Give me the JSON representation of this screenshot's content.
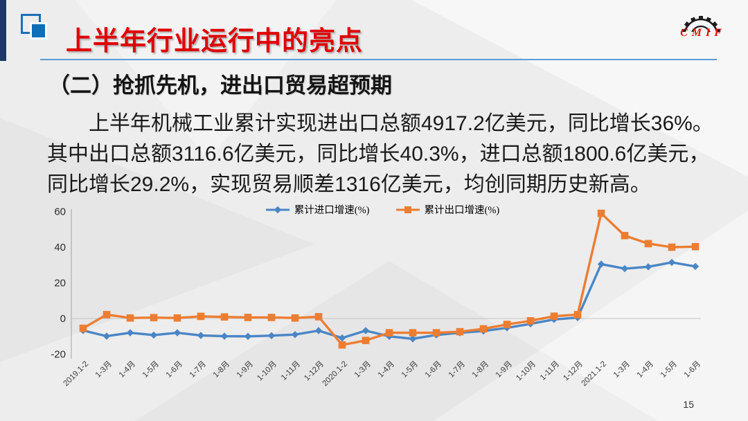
{
  "slide": {
    "title": "上半年行业运行中的亮点",
    "subtitle": "（二）抢抓先机，进出口贸易超预期",
    "body_lines": [
      "上半年机械工业累计实现进出口总额4917.2亿美元，同比增长36%。",
      "其中出口总额3116.6亿美元，同比增长40.3%，进口总额1800.6亿美元，",
      "同比增长29.2%，实现贸易顺差1316亿美元，均创同期历史新高。"
    ],
    "page_number": "15",
    "logo_text": "CMIF"
  },
  "colors": {
    "title_red": "#E00000",
    "underline_blue": "#5B9BD5",
    "icon_blue": "#0E6EB8",
    "bar_navy": "#1F3864",
    "import_blue": "#4A86C6",
    "export_orange": "#ED7D31",
    "gridline_gray": "#C3C3C3"
  },
  "chart_data": {
    "type": "line",
    "categories": [
      "2019.1-2",
      "1-3月",
      "1-4月",
      "1-5月",
      "1-6月",
      "1-7月",
      "1-8月",
      "1-9月",
      "1-10月",
      "1-11月",
      "1-12月",
      "2020.1-2",
      "1-3月",
      "1-4月",
      "1-5月",
      "1-6月",
      "1-7月",
      "1-8月",
      "1-9月",
      "1-10月",
      "1-11月",
      "1-12月",
      "2021.1-2",
      "1-3月",
      "1-4月",
      "1-5月",
      "1-6月"
    ],
    "series": [
      {
        "name": "累计进口增速(%)",
        "color": "#4A86C6",
        "marker": "diamond",
        "values": [
          -6.7,
          -9.9,
          -8.0,
          -9.3,
          -8.0,
          -9.5,
          -9.9,
          -10.0,
          -9.6,
          -9.0,
          -6.8,
          -10.9,
          -6.8,
          -10.0,
          -11.4,
          -9.2,
          -8.0,
          -7.0,
          -5.2,
          -3.0,
          -0.5,
          0.5,
          30.5,
          28.0,
          29.0,
          31.5,
          29.2
        ]
      },
      {
        "name": "累计出口增速(%)",
        "color": "#ED7D31",
        "marker": "square",
        "values": [
          -5.5,
          2.2,
          0.3,
          0.5,
          0.3,
          1.2,
          0.9,
          0.6,
          0.6,
          0.3,
          1.0,
          -14.8,
          -12.3,
          -8.0,
          -8.0,
          -8.0,
          -7.4,
          -5.8,
          -3.3,
          -1.3,
          1.3,
          2.2,
          59.0,
          46.5,
          42.0,
          40.0,
          40.3
        ]
      }
    ],
    "title": "",
    "xlabel": "",
    "ylabel": "",
    "ylim": [
      -20,
      60
    ],
    "yticks": [
      60,
      40,
      20,
      0,
      -20
    ],
    "legend_position": "top",
    "grid": "zero-line-only"
  }
}
